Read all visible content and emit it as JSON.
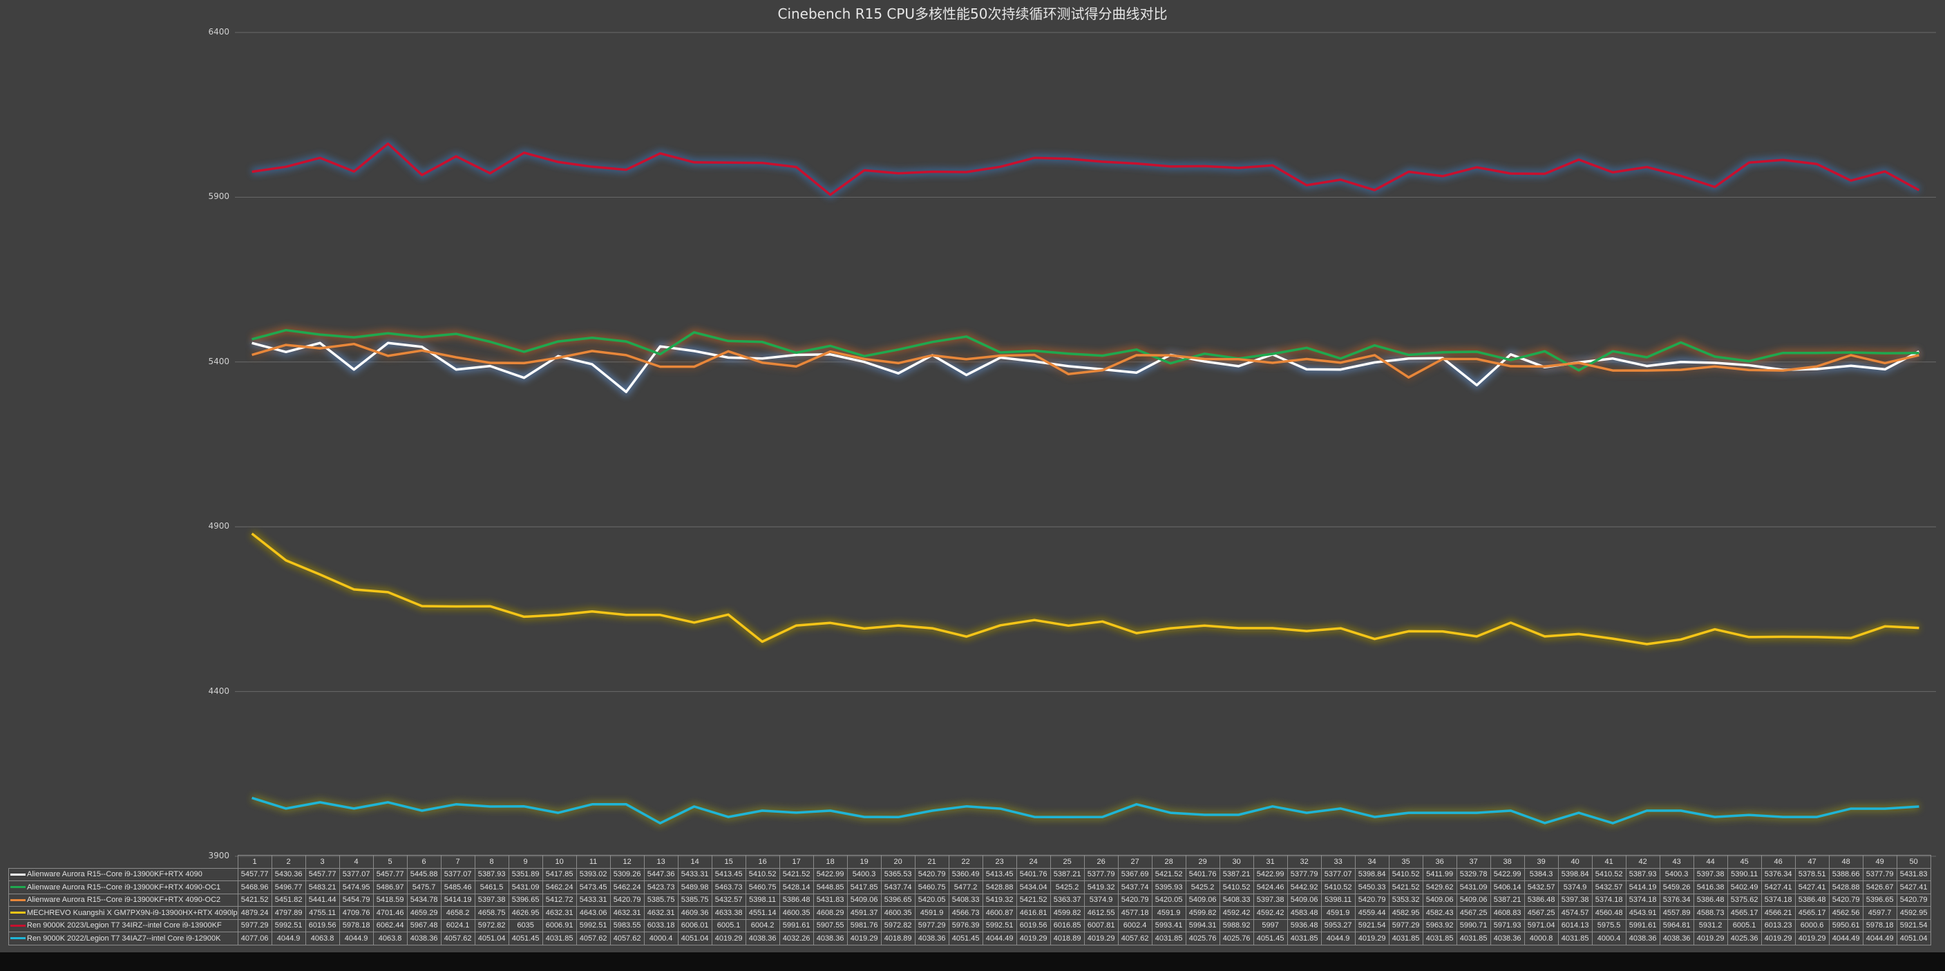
{
  "chart_data": {
    "type": "line",
    "title": "Cinebench R15 CPU多核性能50次持续循环测试得分曲线对比",
    "xlabel": "",
    "ylabel": "",
    "ylim": [
      3900,
      6400
    ],
    "yticks": [
      3900,
      4400,
      4900,
      5400,
      5900,
      6400
    ],
    "grid": true,
    "legend_placement": "bottom data table",
    "x": [
      1,
      2,
      3,
      4,
      5,
      6,
      7,
      8,
      9,
      10,
      11,
      12,
      13,
      14,
      15,
      16,
      17,
      18,
      19,
      20,
      21,
      22,
      23,
      24,
      25,
      26,
      27,
      28,
      29,
      30,
      31,
      32,
      33,
      34,
      35,
      36,
      37,
      38,
      39,
      40,
      41,
      42,
      43,
      44,
      45,
      46,
      47,
      48,
      49,
      50
    ],
    "series": [
      {
        "name": "Alienware Aurora R15--Core i9-13900KF+RTX 4090",
        "color": "#ffffff",
        "glow": "#5a7fb0",
        "values": [
          5457.77,
          5430.36,
          5457.77,
          5377.07,
          5457.77,
          5445.88,
          5377.07,
          5387.93,
          5351.89,
          5417.85,
          5393.02,
          5309.26,
          5447.36,
          5433.31,
          5413.45,
          5410.52,
          5421.52,
          5422.99,
          5400.3,
          5365.53,
          5420.79,
          5360.49,
          5413.45,
          5401.76,
          5387.21,
          5377.79,
          5367.69,
          5421.52,
          5401.76,
          5387.21,
          5422.99,
          5377.79,
          5377.07,
          5398.84,
          5410.52,
          5411.99,
          5329.78,
          5422.99,
          5384.3,
          5398.84,
          5410.52,
          5387.93,
          5400.3,
          5397.38,
          5390.11,
          5376.34,
          5378.51,
          5388.66,
          5377.79,
          5431.83
        ]
      },
      {
        "name": "Alienware Aurora R15--Core i9-13900KF+RTX 4090-OC1",
        "color": "#1fa84f",
        "glow": "#a05a2a",
        "values": [
          5468.96,
          5496.77,
          5483.21,
          5474.95,
          5486.97,
          5475.7,
          5485.46,
          5461.5,
          5431.09,
          5462.24,
          5473.45,
          5462.24,
          5423.73,
          5489.98,
          5463.73,
          5460.75,
          5428.14,
          5448.85,
          5417.85,
          5437.74,
          5460.75,
          5477.2,
          5428.88,
          5434.04,
          5425.2,
          5419.32,
          5437.74,
          5395.93,
          5425.2,
          5410.52,
          5424.46,
          5442.92,
          5410.52,
          5450.33,
          5421.52,
          5429.62,
          5431.09,
          5406.14,
          5432.57,
          5374.9,
          5432.57,
          5414.19,
          5459.26,
          5416.38,
          5402.49,
          5427.41,
          5427.41,
          5428.88,
          5426.67,
          5427.41
        ]
      },
      {
        "name": "Alienware Aurora R15--Core i9-13900KF+RTX 4090-OC2",
        "color": "#e8873a",
        "glow": "#6a4a30",
        "values": [
          5421.52,
          5451.82,
          5441.44,
          5454.79,
          5418.59,
          5434.78,
          5414.19,
          5397.38,
          5396.65,
          5412.72,
          5433.31,
          5420.79,
          5385.75,
          5385.75,
          5432.57,
          5398.11,
          5386.48,
          5431.83,
          5409.06,
          5396.65,
          5420.05,
          5408.33,
          5419.32,
          5421.52,
          5363.37,
          5374.9,
          5420.79,
          5420.05,
          5409.06,
          5408.33,
          5397.38,
          5409.06,
          5398.11,
          5420.79,
          5353.32,
          5409.06,
          5409.06,
          5387.21,
          5386.48,
          5397.38,
          5374.18,
          5374.18,
          5376.34,
          5386.48,
          5375.62,
          5374.18,
          5386.48,
          5420.79,
          5396.65,
          5420.79
        ]
      },
      {
        "name": "MECHREVO Kuangshi X GM7PX9N-i9-13900HX+RTX 4090lp",
        "color": "#f5c518",
        "glow": "#8a7a10",
        "values": [
          4879.24,
          4797.89,
          4755.11,
          4709.76,
          4701.46,
          4659.29,
          4658.2,
          4658.75,
          4626.95,
          4632.31,
          4643.06,
          4632.31,
          4632.31,
          4609.36,
          4633.38,
          4551.14,
          4600.35,
          4608.29,
          4591.37,
          4600.35,
          4591.9,
          4566.73,
          4600.87,
          4616.81,
          4599.82,
          4612.55,
          4577.18,
          4591.9,
          4599.82,
          4592.42,
          4592.42,
          4583.48,
          4591.9,
          4559.44,
          4582.95,
          4582.43,
          4567.25,
          4608.83,
          4567.25,
          4574.57,
          4560.48,
          4543.91,
          4557.89,
          4588.73,
          4565.17,
          4566.21,
          4565.17,
          4562.56,
          4597.7,
          4592.95
        ]
      },
      {
        "name": "Ren 9000K 2023/Legion T7 34IRZ--intel Core i9-13900KF",
        "color": "#c8102e",
        "glow": "#3a6aa0",
        "values": [
          5977.29,
          5992.51,
          6019.56,
          5978.18,
          6062.44,
          5967.48,
          6024.1,
          5972.82,
          6035,
          6006.91,
          5992.51,
          5983.55,
          6033.18,
          6006.01,
          6005.1,
          6004.2,
          5991.61,
          5907.55,
          5981.76,
          5972.82,
          5977.29,
          5976.39,
          5992.51,
          6019.56,
          6016.85,
          6007.81,
          6002.4,
          5993.41,
          5994.31,
          5988.92,
          5997,
          5936.48,
          5953.27,
          5921.54,
          5977.29,
          5963.92,
          5990.71,
          5971.93,
          5971.04,
          6014.13,
          5975.5,
          5991.61,
          5964.81,
          5931.2,
          6005.1,
          6013.23,
          6000.6,
          5950.61,
          5978.18,
          5921.54
        ]
      },
      {
        "name": "Ren 9000K 2022/Legion T7 34IAZ7--intel Core i9-12900K",
        "color": "#1fb5d6",
        "glow": "#7a7a20",
        "values": [
          4077.06,
          4044.9,
          4063.8,
          4044.9,
          4063.8,
          4038.36,
          4057.62,
          4051.04,
          4051.45,
          4031.85,
          4057.62,
          4057.62,
          4000.4,
          4051.04,
          4019.29,
          4038.36,
          4032.26,
          4038.36,
          4019.29,
          4018.89,
          4038.36,
          4051.45,
          4044.49,
          4019.29,
          4018.89,
          4019.29,
          4057.62,
          4031.85,
          4025.76,
          4025.76,
          4051.45,
          4031.85,
          4044.9,
          4019.29,
          4031.85,
          4031.85,
          4031.85,
          4038.36,
          4000.8,
          4031.85,
          4000.4,
          4038.36,
          4038.36,
          4019.29,
          4025.36,
          4019.29,
          4019.29,
          4044.49,
          4044.49,
          4051.04
        ]
      }
    ]
  }
}
